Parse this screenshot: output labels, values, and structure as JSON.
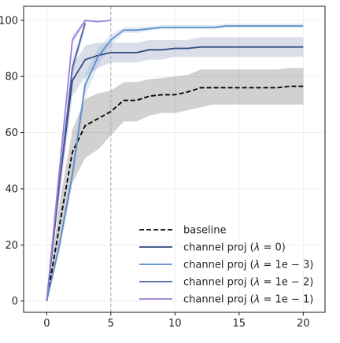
{
  "chart_data": {
    "type": "line",
    "title": "",
    "xlabel": "",
    "ylabel": "",
    "xlim": [
      -1.8,
      21.7
    ],
    "ylim": [
      -4,
      105
    ],
    "grid": true,
    "vline": {
      "x": 5,
      "style": "dashed",
      "color": "#b3b3b3"
    },
    "x_ticks": [
      0,
      5,
      10,
      15,
      20
    ],
    "x_tick_labels": [
      "0",
      "5",
      "10",
      "15",
      "20"
    ],
    "y_ticks": [
      0,
      20,
      40,
      60,
      80,
      100
    ],
    "y_tick_labels": [
      "0",
      "20",
      "40",
      "60",
      "80",
      "100"
    ],
    "legend_position": "lower-right",
    "series": [
      {
        "name": "baseline",
        "color": "#000000",
        "style": "dashed",
        "x": [
          0,
          1,
          2,
          3,
          4,
          5,
          6,
          7,
          8,
          9,
          10,
          11,
          12,
          13,
          14,
          15,
          16,
          17,
          18,
          19,
          20
        ],
        "y": [
          0,
          27,
          53,
          62.5,
          65,
          67.5,
          71.5,
          71.5,
          73,
          73.5,
          73.5,
          74.5,
          76,
          76,
          76,
          76,
          76,
          76,
          76,
          76.5,
          76.5
        ],
        "band_lower": [
          0,
          19,
          42,
          51,
          54,
          59,
          64,
          64,
          66,
          67,
          67,
          68,
          69,
          70,
          70,
          70,
          70,
          70,
          70,
          70,
          70
        ],
        "band_upper": [
          0,
          35,
          61,
          72,
          74,
          75,
          78,
          78,
          79,
          79.5,
          80,
          80.5,
          82.5,
          82.5,
          82.5,
          82.5,
          82.5,
          82.5,
          82.5,
          83,
          83
        ]
      },
      {
        "name": "channel proj ($\\lambda=0$)",
        "color": "#2f4a7d",
        "style": "solid",
        "x": [
          0,
          1,
          2,
          3,
          4,
          5,
          6,
          7,
          8,
          9,
          10,
          11,
          12,
          13,
          14,
          15,
          16,
          17,
          18,
          19,
          20
        ],
        "y": [
          0,
          42,
          78.5,
          86,
          87.5,
          88.5,
          88.5,
          88.5,
          89.5,
          89.5,
          90,
          90,
          90.5,
          90.5,
          90.5,
          90.5,
          90.5,
          90.5,
          90.5,
          90.5,
          90.5
        ],
        "band_lower": [
          0,
          37,
          73,
          80,
          83,
          85,
          85,
          85,
          86,
          86,
          87,
          87,
          87,
          87,
          87,
          87,
          87,
          87,
          87,
          87,
          87
        ],
        "band_upper": [
          0,
          47,
          84,
          91,
          92,
          92,
          92,
          92,
          93,
          93,
          93,
          93,
          94,
          94,
          94,
          94,
          94,
          94,
          94,
          94,
          94
        ]
      },
      {
        "name": "channel proj ($\\lambda=1e-3$)",
        "color": "#5b8ec9",
        "style": "solid",
        "x": [
          0,
          1,
          2,
          3,
          4,
          5,
          6,
          7,
          8,
          9,
          10,
          11,
          12,
          13,
          14,
          15,
          16,
          17,
          18,
          19,
          20
        ],
        "y": [
          0,
          20,
          45,
          77,
          87,
          93,
          96.5,
          96.5,
          97,
          97.5,
          97.5,
          97.5,
          97.5,
          97.5,
          98,
          98,
          98,
          98,
          98,
          98,
          98
        ],
        "band_lower": [
          0,
          17,
          42,
          73,
          84,
          91,
          95.5,
          95.5,
          96.3,
          96.8,
          96.8,
          96.8,
          96.8,
          96.8,
          97.3,
          97.3,
          97.3,
          97.3,
          97.3,
          97.3,
          97.3
        ],
        "band_upper": [
          0,
          23,
          48,
          81,
          90,
          95,
          97.5,
          97.5,
          97.8,
          98.3,
          98.3,
          98.3,
          98.3,
          98.3,
          98.8,
          98.8,
          98.8,
          98.8,
          98.8,
          98.8,
          98.8
        ]
      },
      {
        "name": "channel proj ($\\lambda=1e-2$)",
        "color": "#4d5fa6",
        "style": "solid",
        "x": [
          0,
          1,
          2,
          3
        ],
        "y": [
          0,
          42,
          83,
          99
        ],
        "band_lower": [
          0,
          40,
          80,
          97.5
        ],
        "band_upper": [
          0,
          44,
          86,
          100
        ]
      },
      {
        "name": "channel proj ($\\lambda=1e-1$)",
        "color": "#9b7ed6",
        "style": "solid",
        "x": [
          0,
          1,
          2,
          3,
          4,
          5
        ],
        "y": [
          0,
          47,
          93,
          100,
          99.5,
          100
        ],
        "band_lower": [
          0,
          45,
          91,
          99.5,
          99.2,
          99.6
        ],
        "band_upper": [
          0,
          49,
          95,
          100,
          100,
          100
        ]
      }
    ],
    "legend_labels": [
      "baseline",
      "channel proj (",
      "channel proj (",
      "channel proj (",
      "channel proj ("
    ],
    "legend_lambda": [
      "",
      "0",
      "1e − 3",
      "1e − 2",
      "1e − 1"
    ]
  }
}
